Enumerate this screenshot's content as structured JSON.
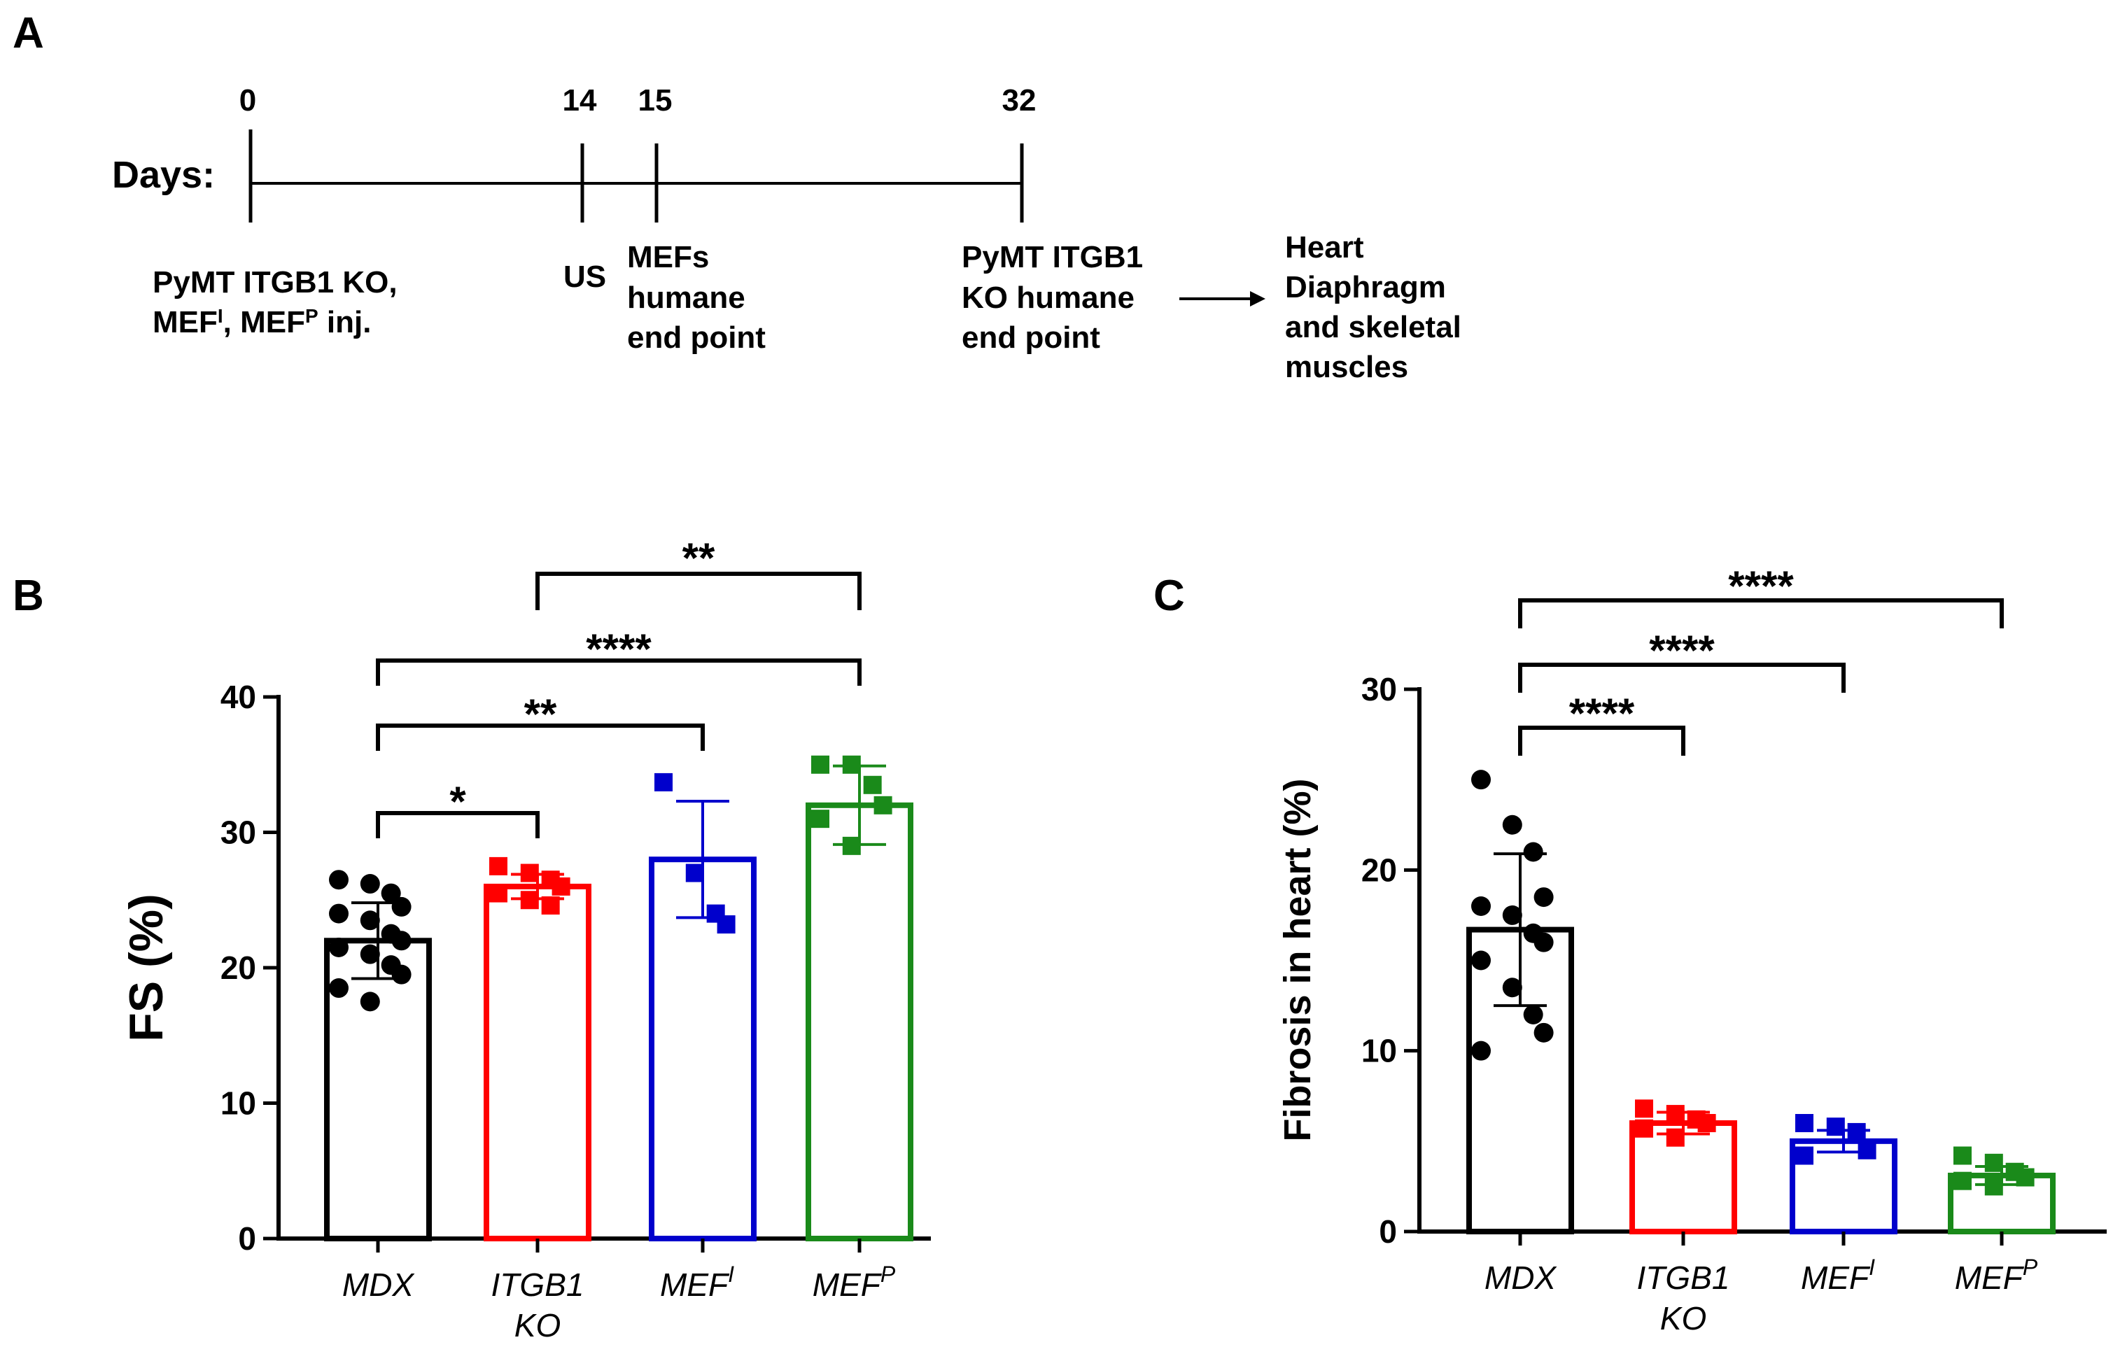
{
  "panels": {
    "a": "A",
    "b": "B",
    "c": "C"
  },
  "timeline": {
    "days_label": "Days:",
    "ticks": [
      {
        "day": "0",
        "lines": [
          "PyMT ITGB1 KO,",
          "MEF",
          ", MEF",
          " inj."
        ]
      },
      {
        "day": "14",
        "lines": [
          "US"
        ]
      },
      {
        "day": "15",
        "lines": [
          "MEFs",
          "humane",
          "end point"
        ]
      },
      {
        "day": "32",
        "lines": [
          "PyMT ITGB1",
          "KO humane",
          "end point"
        ]
      }
    ],
    "sup_i": "I",
    "sup_p": "P",
    "outcome": [
      "Heart",
      "Diaphragm",
      "and skeletal",
      "muscles"
    ]
  },
  "chart_data": [
    {
      "type": "bar",
      "panel": "B",
      "title": "",
      "ylabel": "FS (%)",
      "xlabel": "",
      "ylim": [
        0,
        40
      ],
      "yticks": [
        0,
        10,
        20,
        30,
        40
      ],
      "categories": [
        "MDX",
        "ITGB1 KO",
        "MEF^I",
        "MEF^P"
      ],
      "category_lines": [
        [
          "MDX"
        ],
        [
          "ITGB1",
          "KO"
        ],
        [
          "MEF",
          "I"
        ],
        [
          "MEF",
          "P"
        ]
      ],
      "colors": [
        "#000000",
        "#ff0000",
        "#0000cc",
        "#1a8a1a"
      ],
      "marker": [
        "circle",
        "square",
        "square",
        "square"
      ],
      "values": [
        22,
        26,
        28,
        32
      ],
      "sd": [
        2.8,
        0.9,
        4.3,
        2.9
      ],
      "points": [
        [
          26.5,
          26.2,
          25.5,
          24.5,
          24.0,
          23.5,
          22.5,
          22.0,
          21.5,
          21.0,
          20.2,
          19.5,
          18.5,
          17.5
        ],
        [
          27.5,
          27.0,
          26.5,
          26.0,
          25.5,
          25.0,
          24.6
        ],
        [
          33.7,
          27.0,
          24.0,
          23.2
        ],
        [
          35.0,
          35.0,
          33.5,
          32.0,
          31.0,
          29.0
        ]
      ],
      "comparisons": [
        {
          "from": 0,
          "to": 1,
          "label": "*"
        },
        {
          "from": 0,
          "to": 2,
          "label": "**"
        },
        {
          "from": 0,
          "to": 3,
          "label": "****"
        },
        {
          "from": 1,
          "to": 3,
          "label": "**"
        }
      ]
    },
    {
      "type": "bar",
      "panel": "C",
      "title": "",
      "ylabel": "Fibrosis in heart (%)",
      "xlabel": "",
      "ylim": [
        0,
        30
      ],
      "yticks": [
        0,
        10,
        20,
        30
      ],
      "categories": [
        "MDX",
        "ITGB1 KO",
        "MEF^I",
        "MEF^P"
      ],
      "category_lines": [
        [
          "MDX"
        ],
        [
          "ITGB1",
          "KO"
        ],
        [
          "MEF",
          "I"
        ],
        [
          "MEF",
          "P"
        ]
      ],
      "colors": [
        "#000000",
        "#ff0000",
        "#0000cc",
        "#1a8a1a"
      ],
      "marker": [
        "circle",
        "square",
        "square",
        "square"
      ],
      "values": [
        16.7,
        6.0,
        5.0,
        3.1
      ],
      "sd": [
        4.2,
        0.6,
        0.6,
        0.5
      ],
      "points": [
        [
          25.0,
          22.5,
          21.0,
          18.5,
          18.0,
          17.5,
          16.5,
          16.0,
          15.0,
          13.5,
          12.0,
          11.0,
          10.0
        ],
        [
          6.8,
          6.5,
          6.2,
          6.0,
          5.7,
          5.2
        ],
        [
          6.0,
          5.8,
          5.5,
          4.5,
          4.2
        ],
        [
          4.2,
          3.8,
          3.3,
          3.0,
          2.8,
          2.5
        ]
      ],
      "comparisons": [
        {
          "from": 0,
          "to": 1,
          "label": "****"
        },
        {
          "from": 0,
          "to": 2,
          "label": "****"
        },
        {
          "from": 0,
          "to": 3,
          "label": "****"
        }
      ]
    }
  ]
}
